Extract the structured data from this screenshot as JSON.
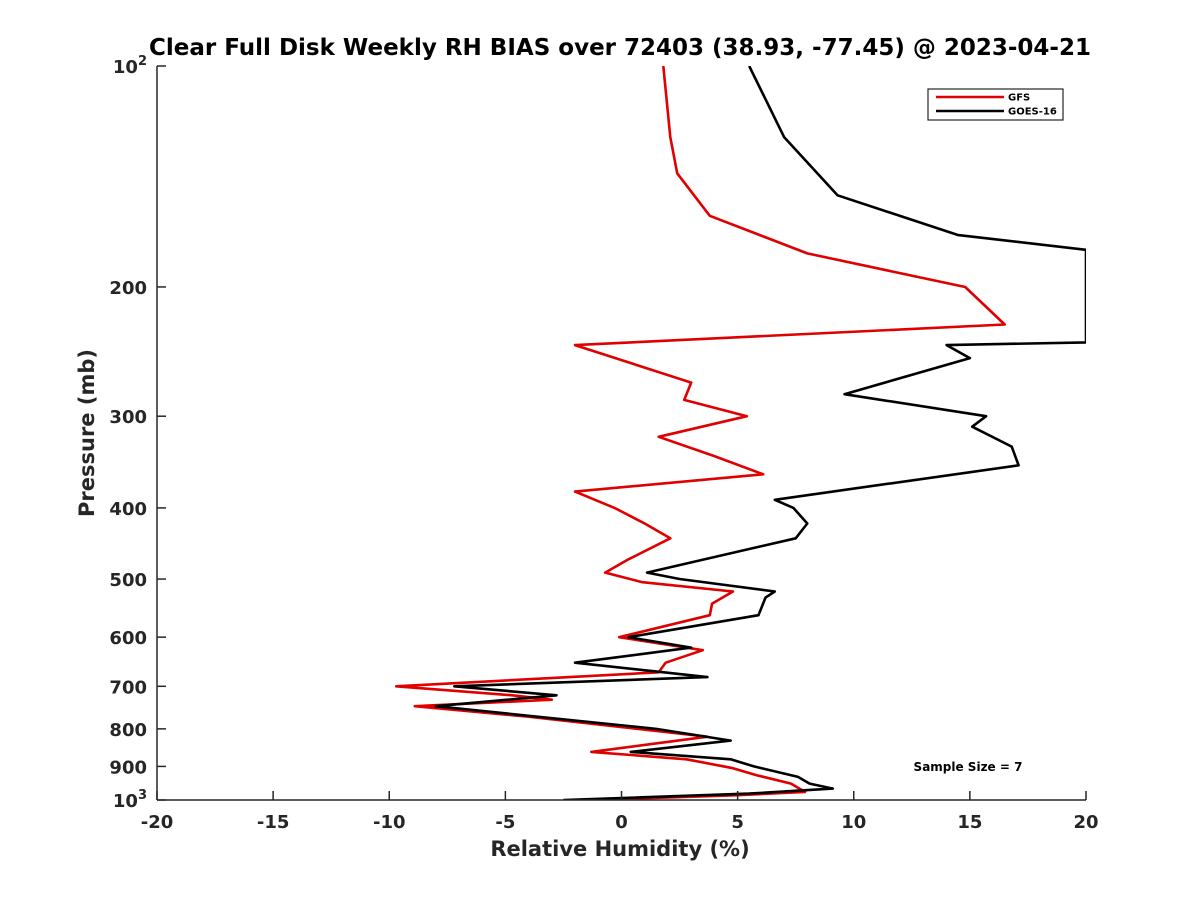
{
  "chart_data": {
    "type": "line",
    "title": "Clear Full Disk Weekly RH BIAS over 72403 (38.93, -77.45) @ 2023-04-21",
    "xlabel": "Relative Humidity (%)",
    "ylabel": "Pressure (mb)",
    "xlim": [
      -20,
      20
    ],
    "ylim": [
      100,
      1000
    ],
    "y_scale": "log",
    "y_reversed": true,
    "x_ticks": [
      -20,
      -15,
      -10,
      -5,
      0,
      5,
      10,
      15,
      20
    ],
    "x_tick_labels": [
      "-20",
      "-15",
      "-10",
      "-5",
      "0",
      "5",
      "10",
      "15",
      "20"
    ],
    "y_ticks": [
      100,
      200,
      300,
      400,
      500,
      600,
      700,
      800,
      900,
      1000
    ],
    "y_tick_labels": [
      {
        "base": "10",
        "exp": "2"
      },
      {
        "text": "200"
      },
      {
        "text": "300"
      },
      {
        "text": "400"
      },
      {
        "text": "500"
      },
      {
        "text": "600"
      },
      {
        "text": "700"
      },
      {
        "text": "800"
      },
      {
        "text": "900"
      },
      {
        "base": "10",
        "exp": "3"
      }
    ],
    "grid": false,
    "legend_position": "top-right",
    "annotation": "Sample Size = 7",
    "series": [
      {
        "name": "GFS",
        "color": "#e00000",
        "points": [
          [
            1.8,
            100
          ],
          [
            2.1,
            125
          ],
          [
            2.4,
            140
          ],
          [
            3.8,
            160
          ],
          [
            8.0,
            180
          ],
          [
            14.8,
            200
          ],
          [
            16.5,
            225
          ],
          [
            -2.0,
            240
          ],
          [
            3.0,
            270
          ],
          [
            2.7,
            285
          ],
          [
            5.4,
            300
          ],
          [
            1.6,
            320
          ],
          [
            4.0,
            340
          ],
          [
            6.1,
            360
          ],
          [
            -2.0,
            380
          ],
          [
            -0.3,
            400
          ],
          [
            1.0,
            420
          ],
          [
            2.1,
            440
          ],
          [
            0.3,
            470
          ],
          [
            -0.7,
            490
          ],
          [
            0.9,
            505
          ],
          [
            4.8,
            520
          ],
          [
            3.9,
            540
          ],
          [
            3.8,
            560
          ],
          [
            -0.1,
            600
          ],
          [
            3.5,
            625
          ],
          [
            1.9,
            650
          ],
          [
            1.6,
            670
          ],
          [
            -9.7,
            700
          ],
          [
            -4.7,
            720
          ],
          [
            -3.0,
            730
          ],
          [
            -8.9,
            745
          ],
          [
            -4.0,
            770
          ],
          [
            3.7,
            820
          ],
          [
            -1.3,
            860
          ],
          [
            2.8,
            880
          ],
          [
            4.8,
            905
          ],
          [
            5.8,
            925
          ],
          [
            7.3,
            950
          ],
          [
            7.9,
            975
          ],
          [
            5.0,
            985
          ],
          [
            -1.3,
            1000
          ]
        ]
      },
      {
        "name": "GOES-16",
        "color": "#000000",
        "points": [
          [
            5.5,
            100
          ],
          [
            7.0,
            125
          ],
          [
            9.3,
            150
          ],
          [
            14.5,
            170
          ],
          [
            20.0,
            178
          ],
          [
            20.0,
            238
          ],
          [
            14.0,
            240
          ],
          [
            15.0,
            250
          ],
          [
            9.6,
            280
          ],
          [
            15.7,
            300
          ],
          [
            15.1,
            310
          ],
          [
            16.8,
            330
          ],
          [
            17.1,
            350
          ],
          [
            6.6,
            390
          ],
          [
            7.4,
            400
          ],
          [
            8.0,
            420
          ],
          [
            7.5,
            440
          ],
          [
            1.1,
            490
          ],
          [
            2.5,
            500
          ],
          [
            6.6,
            520
          ],
          [
            6.2,
            530
          ],
          [
            5.9,
            560
          ],
          [
            0.3,
            600
          ],
          [
            3.0,
            620
          ],
          [
            -2.0,
            650
          ],
          [
            3.7,
            680
          ],
          [
            -7.2,
            700
          ],
          [
            -2.8,
            720
          ],
          [
            -8.0,
            745
          ],
          [
            1.5,
            800
          ],
          [
            4.7,
            830
          ],
          [
            0.4,
            860
          ],
          [
            4.7,
            880
          ],
          [
            5.7,
            900
          ],
          [
            7.6,
            930
          ],
          [
            8.1,
            950
          ],
          [
            9.1,
            965
          ],
          [
            5.5,
            980
          ],
          [
            -2.5,
            1000
          ]
        ]
      }
    ]
  }
}
